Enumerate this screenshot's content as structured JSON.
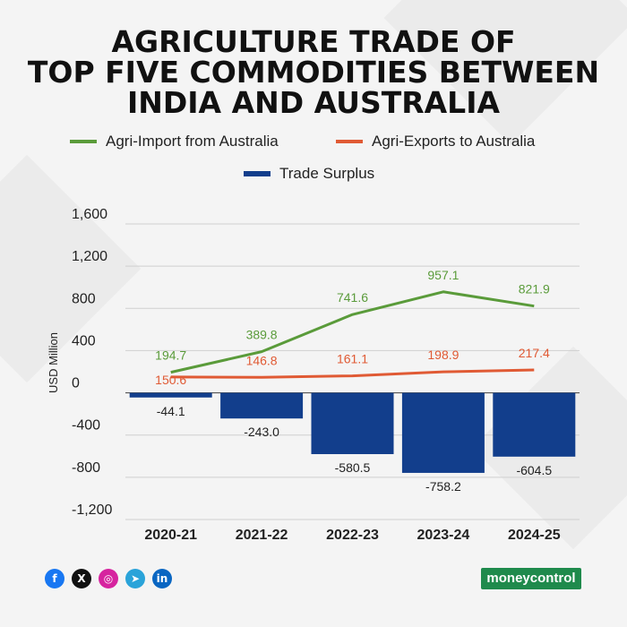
{
  "title_lines": [
    "AGRICULTURE TRADE OF",
    "TOP FIVE COMMODITIES BETWEEN",
    "INDIA AND AUSTRALIA"
  ],
  "legend": {
    "import_label": "Agri-Import from Australia",
    "export_label": "Agri-Exports to Australia",
    "surplus_label": "Trade Surplus"
  },
  "colors": {
    "import": "#5a9b3a",
    "export": "#e05a34",
    "surplus": "#123e8c",
    "background": "#f4f4f4",
    "brand": "#1f8a4c"
  },
  "chart_data": {
    "type": "bar",
    "title": "AGRICULTURE TRADE OF TOP FIVE COMMODITIES BETWEEN INDIA AND AUSTRALIA",
    "ylabel": "USD Million",
    "xlabel": "",
    "categories": [
      "2020-21",
      "2021-22",
      "2022-23",
      "2023-24",
      "2024-25"
    ],
    "ylim": [
      -1200,
      1600
    ],
    "yticks": [
      1600,
      1200,
      800,
      400,
      0,
      -400,
      -800,
      -1200
    ],
    "ytick_labels": [
      "1,600",
      "1,200",
      "800",
      "400",
      "0",
      "-400",
      "-800",
      "-1,200"
    ],
    "grid": true,
    "legend_position": "top",
    "series": [
      {
        "name": "Agri-Import from Australia",
        "type": "line",
        "values": [
          194.7,
          389.8,
          741.6,
          957.1,
          821.9
        ],
        "labels": [
          "194.7",
          "389.8",
          "741.6",
          "957.1",
          "821.9"
        ]
      },
      {
        "name": "Agri-Exports to Australia",
        "type": "line",
        "values": [
          150.6,
          146.8,
          161.1,
          198.9,
          217.4
        ],
        "labels": [
          "150.6",
          "146.8",
          "161.1",
          "198.9",
          "217.4"
        ]
      },
      {
        "name": "Trade Surplus",
        "type": "bar",
        "values": [
          -44.1,
          -243.0,
          -580.5,
          -758.2,
          -604.5
        ],
        "labels": [
          "-44.1",
          "-243.0",
          "-580.5",
          "-758.2",
          "-604.5"
        ]
      }
    ]
  },
  "social_icons": [
    {
      "name": "facebook-icon",
      "glyph": "f",
      "color": "#1877f2"
    },
    {
      "name": "x-icon",
      "glyph": "X",
      "color": "#111111"
    },
    {
      "name": "instagram-icon",
      "glyph": "◎",
      "color": "#d6249f"
    },
    {
      "name": "telegram-icon",
      "glyph": "➤",
      "color": "#2aa3d9"
    },
    {
      "name": "linkedin-icon",
      "glyph": "in",
      "color": "#0a66c2"
    }
  ],
  "brand": "moneycontrol"
}
